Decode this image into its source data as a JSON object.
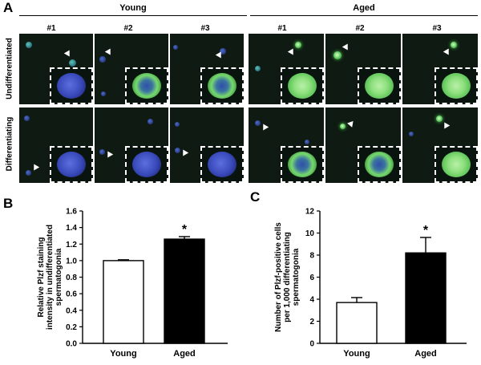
{
  "panel_a": {
    "letter": "A",
    "groups": [
      {
        "title": "Young",
        "columns": [
          "#1",
          "#2",
          "#3"
        ]
      },
      {
        "title": "Aged",
        "columns": [
          "#1",
          "#2",
          "#3"
        ]
      }
    ],
    "rows": [
      "Undifferentiated",
      "Differentiating"
    ]
  },
  "panel_b": {
    "letter": "B"
  },
  "panel_c": {
    "letter": "C"
  },
  "colors": {
    "young_bar": "#ffffff",
    "aged_bar": "#000000",
    "stain_green": "#6fd36a",
    "nucleus_blue": "#3848b8"
  },
  "chart_data": [
    {
      "type": "bar",
      "categories": [
        "Young",
        "Aged"
      ],
      "values": [
        1.0,
        1.26
      ],
      "errors": [
        0.01,
        0.03
      ],
      "significance": [
        "",
        "*"
      ],
      "ylabel": "Relative Plzf staining intensity in undifferentiated spermatogonia",
      "ylabel_lines": [
        "Relative Plzf staining",
        "intensity in undifferentiated",
        "spermatogonia"
      ],
      "ylim": [
        0.0,
        1.6
      ],
      "yticks": [
        "0.0",
        "0.2",
        "0.4",
        "0.6",
        "0.8",
        "1.0",
        "1.2",
        "1.4",
        "1.6"
      ]
    },
    {
      "type": "bar",
      "categories": [
        "Young",
        "Aged"
      ],
      "values": [
        3.7,
        8.2
      ],
      "errors": [
        0.45,
        1.4
      ],
      "significance": [
        "",
        "*"
      ],
      "ylabel": "Number of Plzf-positive cells per 1,000 differentiating spermatogonia",
      "ylabel_lines": [
        "Number of Plzf-positive cells",
        "per 1,000 differentiating",
        "spermatogonia"
      ],
      "ylim": [
        0,
        12
      ],
      "yticks": [
        "0",
        "2",
        "4",
        "6",
        "8",
        "10",
        "12"
      ]
    }
  ]
}
